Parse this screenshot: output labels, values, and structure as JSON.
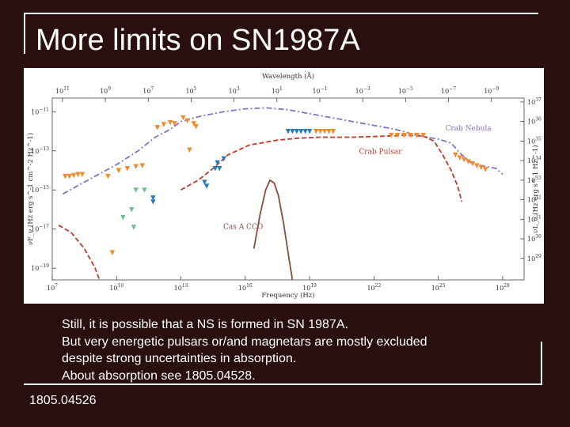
{
  "slide": {
    "title": "More limits on SN1987A",
    "caption_lines": [
      "Still, it is possible that a NS is formed in SN 1987A.",
      "But very energetic pulsars or/and magnetars are mostly excluded",
      "despite strong uncertainties in absorption.",
      "About absorption see 1805.04528."
    ],
    "reference": "1805.04526"
  },
  "colors": {
    "background": "#2a0f0f",
    "crab_nebula": "#8a6fc9",
    "crab_pulsar": "#c0392b",
    "cas_a_cco": "#8b4a3c",
    "orange": "#f08a2a",
    "blue": "#2a7ab8",
    "green": "#6cc08b"
  },
  "chart_data": {
    "type": "line",
    "title": "",
    "xlabel": "Frequency (Hz)",
    "top_xlabel": "Wavelength (Å)",
    "ylabel": "νF_ν (Hz erg s^-1 cm^-2 Hz^-1)",
    "right_ylabel": "νL_ν (Hz erg s^-1 Hz^-1)",
    "xscale": "log",
    "yscale": "log",
    "xlim_log10": [
      7,
      29
    ],
    "ylim_log10": [
      -19.6,
      -10.3
    ],
    "x_ticks": [
      {
        "log": 7,
        "base": "10",
        "exp": "7"
      },
      {
        "log": 10,
        "base": "10",
        "exp": "10"
      },
      {
        "log": 13,
        "base": "10",
        "exp": "13"
      },
      {
        "log": 16,
        "base": "10",
        "exp": "16"
      },
      {
        "log": 19,
        "base": "10",
        "exp": "19"
      },
      {
        "log": 22,
        "base": "10",
        "exp": "22"
      },
      {
        "log": 25,
        "base": "10",
        "exp": "25"
      },
      {
        "log": 28,
        "base": "10",
        "exp": "28"
      }
    ],
    "top_ticks": [
      {
        "wl": 11,
        "base": "10",
        "exp": "11"
      },
      {
        "wl": 9,
        "base": "10",
        "exp": "9"
      },
      {
        "wl": 7,
        "base": "10",
        "exp": "7"
      },
      {
        "wl": 5,
        "base": "10",
        "exp": "5"
      },
      {
        "wl": 3,
        "base": "10",
        "exp": "3"
      },
      {
        "wl": 1,
        "base": "10",
        "exp": "1"
      },
      {
        "wl": -1,
        "base": "10",
        "exp": "−1"
      },
      {
        "wl": -3,
        "base": "10",
        "exp": "−3"
      },
      {
        "wl": -5,
        "base": "10",
        "exp": "−5"
      },
      {
        "wl": -7,
        "base": "10",
        "exp": "−7"
      },
      {
        "wl": -9,
        "base": "10",
        "exp": "−9"
      }
    ],
    "y_ticks": [
      {
        "log": -11,
        "base": "10",
        "exp": "−11"
      },
      {
        "log": -13,
        "base": "10",
        "exp": "−13"
      },
      {
        "log": -15,
        "base": "10",
        "exp": "−15"
      },
      {
        "log": -17,
        "base": "10",
        "exp": "−17"
      },
      {
        "log": -19,
        "base": "10",
        "exp": "−19"
      }
    ],
    "right_ticks": [
      {
        "log": 37,
        "base": "10",
        "exp": "37"
      },
      {
        "log": 36,
        "base": "10",
        "exp": "36"
      },
      {
        "log": 35,
        "base": "10",
        "exp": "35"
      },
      {
        "log": 34,
        "base": "10",
        "exp": "34"
      },
      {
        "log": 33,
        "base": "10",
        "exp": "33"
      },
      {
        "log": 32,
        "base": "10",
        "exp": "32"
      },
      {
        "log": 31,
        "base": "10",
        "exp": "31"
      },
      {
        "log": 30,
        "base": "10",
        "exp": "30"
      },
      {
        "log": 29,
        "base": "10",
        "exp": "29"
      }
    ],
    "right_axis_offset": 47.5,
    "series": [
      {
        "name": "Crab Nebula",
        "style": "dashdot",
        "color": "#8a6fc9",
        "points": [
          [
            7.5,
            -15.2
          ],
          [
            8.5,
            -14.6
          ],
          [
            10,
            -13.7
          ],
          [
            11,
            -13.0
          ],
          [
            11.8,
            -12.3
          ],
          [
            12.5,
            -11.9
          ],
          [
            13,
            -11.5
          ],
          [
            14,
            -11.2
          ],
          [
            15,
            -11.0
          ],
          [
            16,
            -10.85
          ],
          [
            17,
            -10.8
          ],
          [
            18,
            -10.9
          ],
          [
            19,
            -11.1
          ],
          [
            20,
            -11.3
          ],
          [
            21,
            -11.5
          ],
          [
            22,
            -11.7
          ],
          [
            23,
            -11.9
          ],
          [
            24,
            -12.2
          ],
          [
            25,
            -12.4
          ],
          [
            25.6,
            -12.6
          ],
          [
            26,
            -13.1
          ],
          [
            26.5,
            -13.6
          ],
          [
            27.2,
            -13.8
          ],
          [
            27.7,
            -13.9
          ],
          [
            28,
            -14.2
          ]
        ]
      },
      {
        "name": "Crab Pulsar",
        "style": "dashed",
        "color": "#c0392b",
        "points": [
          [
            13,
            -15.0
          ],
          [
            13.8,
            -14.5
          ],
          [
            14.5,
            -13.9
          ],
          [
            15.2,
            -13.2
          ],
          [
            16.2,
            -12.7
          ],
          [
            17.5,
            -12.45
          ],
          [
            18.5,
            -12.35
          ],
          [
            19.5,
            -12.3
          ],
          [
            21,
            -12.3
          ],
          [
            22.5,
            -12.25
          ],
          [
            23.5,
            -12.2
          ],
          [
            24.3,
            -12.25
          ],
          [
            24.8,
            -12.5
          ],
          [
            25.2,
            -13.2
          ],
          [
            25.6,
            -14.0
          ],
          [
            25.9,
            -14.8
          ],
          [
            26.1,
            -15.6
          ]
        ]
      },
      {
        "name": "Crab Pulsar low",
        "style": "dashed",
        "color": "#c0392b",
        "points": [
          [
            7.3,
            -16.8
          ],
          [
            7.9,
            -17.2
          ],
          [
            8.5,
            -18.0
          ],
          [
            9.0,
            -19.0
          ],
          [
            9.2,
            -19.6
          ]
        ]
      },
      {
        "name": "Cas A CCO",
        "style": "solid",
        "color": "#8b4a3c",
        "points": [
          [
            16.4,
            -18.0
          ],
          [
            16.7,
            -16.2
          ],
          [
            16.95,
            -15.0
          ],
          [
            17.15,
            -14.5
          ],
          [
            17.35,
            -14.65
          ],
          [
            17.55,
            -15.3
          ],
          [
            17.8,
            -16.8
          ],
          [
            18.05,
            -18.6
          ],
          [
            18.2,
            -19.6
          ]
        ]
      }
    ],
    "upper_limits": [
      {
        "group": "orange-radio",
        "color": "#f08a2a",
        "points": [
          [
            7.6,
            -14.3
          ],
          [
            7.8,
            -14.3
          ],
          [
            8.0,
            -14.25
          ],
          [
            8.2,
            -14.2
          ],
          [
            8.4,
            -14.2
          ]
        ]
      },
      {
        "group": "orange-mm",
        "color": "#f08a2a",
        "points": [
          [
            9.6,
            -14.3
          ],
          [
            10.1,
            -14.0
          ],
          [
            10.5,
            -13.9
          ],
          [
            10.9,
            -13.8
          ],
          [
            11.2,
            -13.75
          ]
        ]
      },
      {
        "group": "orange-ir",
        "color": "#f08a2a",
        "points": [
          [
            11.9,
            -11.8
          ],
          [
            12.2,
            -11.65
          ],
          [
            12.5,
            -11.55
          ],
          [
            12.7,
            -11.6
          ],
          [
            13.1,
            -11.3
          ],
          [
            13.3,
            -11.45
          ],
          [
            13.6,
            -11.6
          ],
          [
            13.7,
            -11.75
          ],
          [
            13.4,
            -12.95
          ],
          [
            9.8,
            -18.2
          ]
        ]
      },
      {
        "group": "green",
        "color": "#6cc08b",
        "points": [
          [
            10.9,
            -15.0
          ],
          [
            11.3,
            -15.0
          ],
          [
            10.7,
            -16.0
          ],
          [
            10.3,
            -16.4
          ],
          [
            10.8,
            -16.9
          ]
        ]
      },
      {
        "group": "blue-optical",
        "color": "#2a7ab8",
        "points": [
          [
            11.7,
            -15.4
          ],
          [
            11.7,
            -15.6
          ],
          [
            14.1,
            -14.6
          ],
          [
            14.2,
            -14.8
          ],
          [
            14.6,
            -13.9
          ],
          [
            14.7,
            -13.6
          ],
          [
            15.0,
            -13.4
          ],
          [
            14.8,
            -13.9
          ]
        ]
      },
      {
        "group": "blue-xray",
        "color": "#2a7ab8",
        "points": [
          [
            18.0,
            -12.0
          ],
          [
            18.2,
            -12.0
          ],
          [
            18.4,
            -12.0
          ],
          [
            18.6,
            -12.0
          ],
          [
            18.8,
            -12.0
          ],
          [
            19.0,
            -12.0
          ]
        ]
      },
      {
        "group": "orange-xray",
        "color": "#f08a2a",
        "points": [
          [
            19.3,
            -12.0
          ],
          [
            19.5,
            -12.0
          ],
          [
            19.7,
            -12.0
          ],
          [
            19.9,
            -12.0
          ],
          [
            20.1,
            -12.0
          ]
        ]
      },
      {
        "group": "orange-gamma",
        "color": "#f08a2a",
        "points": [
          [
            22.8,
            -12.2
          ],
          [
            23.1,
            -12.2
          ],
          [
            23.4,
            -12.2
          ],
          [
            23.7,
            -12.2
          ],
          [
            24.0,
            -12.2
          ],
          [
            24.3,
            -12.2
          ]
        ]
      },
      {
        "group": "orange-tev",
        "color": "#f08a2a",
        "points": [
          [
            25.8,
            -13.2
          ],
          [
            26.0,
            -13.35
          ],
          [
            26.2,
            -13.45
          ],
          [
            26.4,
            -13.55
          ],
          [
            26.6,
            -13.65
          ],
          [
            26.8,
            -13.75
          ],
          [
            27.0,
            -13.85
          ],
          [
            27.2,
            -13.95
          ]
        ]
      }
    ],
    "annotations": [
      {
        "text": "Crab Nebula",
        "x": 26.4,
        "y": -11.95,
        "color": "#8a6fc9"
      },
      {
        "text": "Crab Pulsar",
        "x": 22.3,
        "y": -13.15,
        "color": "#c0392b"
      },
      {
        "text": "Cas A CCO",
        "x": 15.9,
        "y": -17.0,
        "color": "#8b4a3c"
      }
    ]
  }
}
